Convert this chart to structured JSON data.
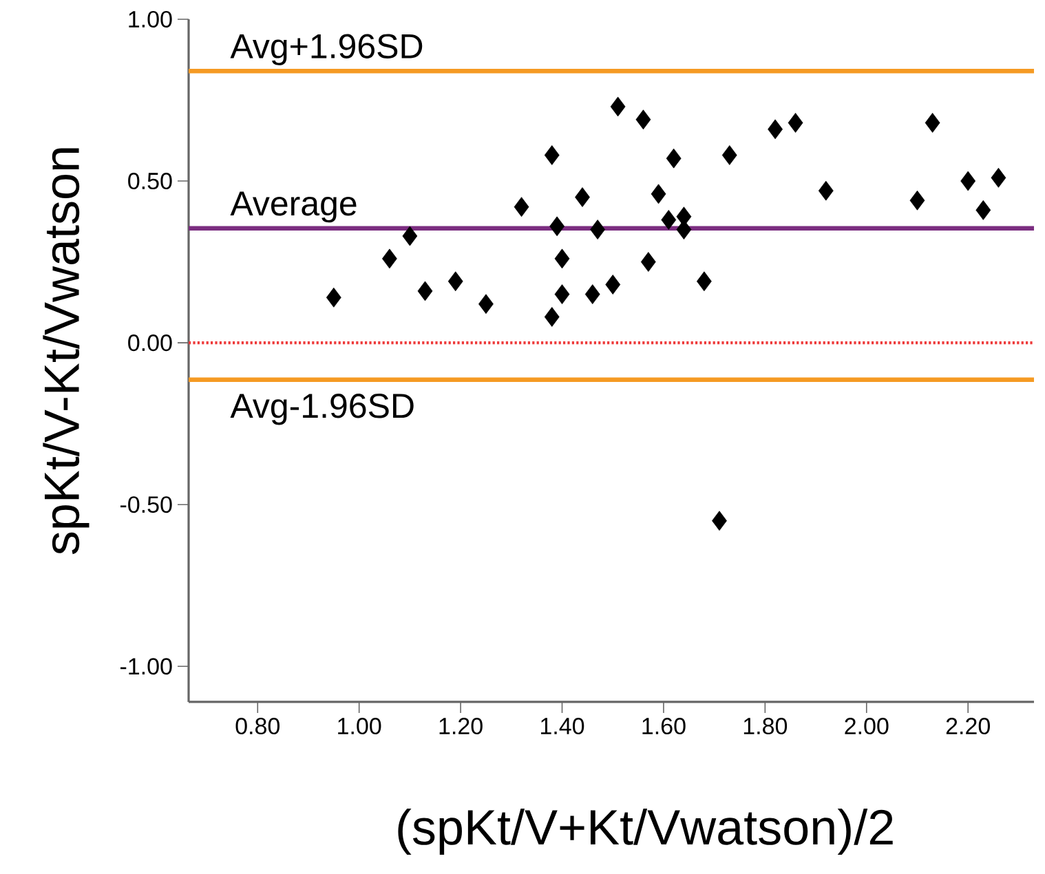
{
  "chart_data": {
    "type": "scatter",
    "xlabel": "(spKt/V+Kt/Vwatson)/2",
    "ylabel": "spKt/V-Kt/Vwatson",
    "xlim": [
      0.664,
      2.33
    ],
    "ylim": [
      -1.11,
      1.0
    ],
    "xticks": [
      {
        "value": 0.8,
        "label": "0.80"
      },
      {
        "value": 1.0,
        "label": "1.00"
      },
      {
        "value": 1.2,
        "label": "1.20"
      },
      {
        "value": 1.4,
        "label": "1.40"
      },
      {
        "value": 1.6,
        "label": "1.60"
      },
      {
        "value": 1.8,
        "label": "1.80"
      },
      {
        "value": 2.0,
        "label": "2.00"
      },
      {
        "value": 2.2,
        "label": "2.20"
      }
    ],
    "yticks": [
      {
        "value": -1.0,
        "label": "-1.00"
      },
      {
        "value": -0.5,
        "label": "-0.50"
      },
      {
        "value": 0.0,
        "label": "0.00"
      },
      {
        "value": 0.5,
        "label": "0.50"
      },
      {
        "value": 1.0,
        "label": "1.00"
      }
    ],
    "marker": "diamond",
    "series": [
      {
        "color": "#000000",
        "x": [
          0.95,
          1.06,
          1.1,
          1.13,
          1.19,
          1.25,
          1.32,
          1.38,
          1.39,
          1.4,
          1.4,
          1.38,
          1.44,
          1.47,
          1.46,
          1.5,
          1.51,
          1.56,
          1.62,
          1.59,
          1.57,
          1.61,
          1.64,
          1.64,
          1.68,
          1.73,
          1.82,
          1.86,
          1.92,
          2.1,
          2.13,
          2.2,
          2.26,
          2.23,
          1.71
        ],
        "values": [
          0.14,
          0.26,
          0.33,
          0.16,
          0.19,
          0.12,
          0.42,
          0.58,
          0.36,
          0.26,
          0.15,
          0.08,
          0.45,
          0.35,
          0.15,
          0.18,
          0.73,
          0.69,
          0.57,
          0.46,
          0.25,
          0.38,
          0.39,
          0.35,
          0.19,
          0.58,
          0.66,
          0.68,
          0.47,
          0.44,
          0.68,
          0.5,
          0.51,
          0.41,
          -0.55
        ]
      }
    ],
    "ref_lines": [
      {
        "axis": "y",
        "value": 0.84,
        "label": "Avg+1.96SD",
        "color": "#f59a23",
        "line_style": "solid"
      },
      {
        "axis": "y",
        "value": 0.354,
        "label": "Average",
        "color": "#7b2d80",
        "line_style": "solid"
      },
      {
        "axis": "y",
        "value": -0.114,
        "label": "Avg-1.96SD",
        "color": "#f59a23",
        "line_style": "solid"
      },
      {
        "axis": "y",
        "value": 0.0,
        "color": "#ee3b3b",
        "line_style": "dotted"
      }
    ]
  }
}
